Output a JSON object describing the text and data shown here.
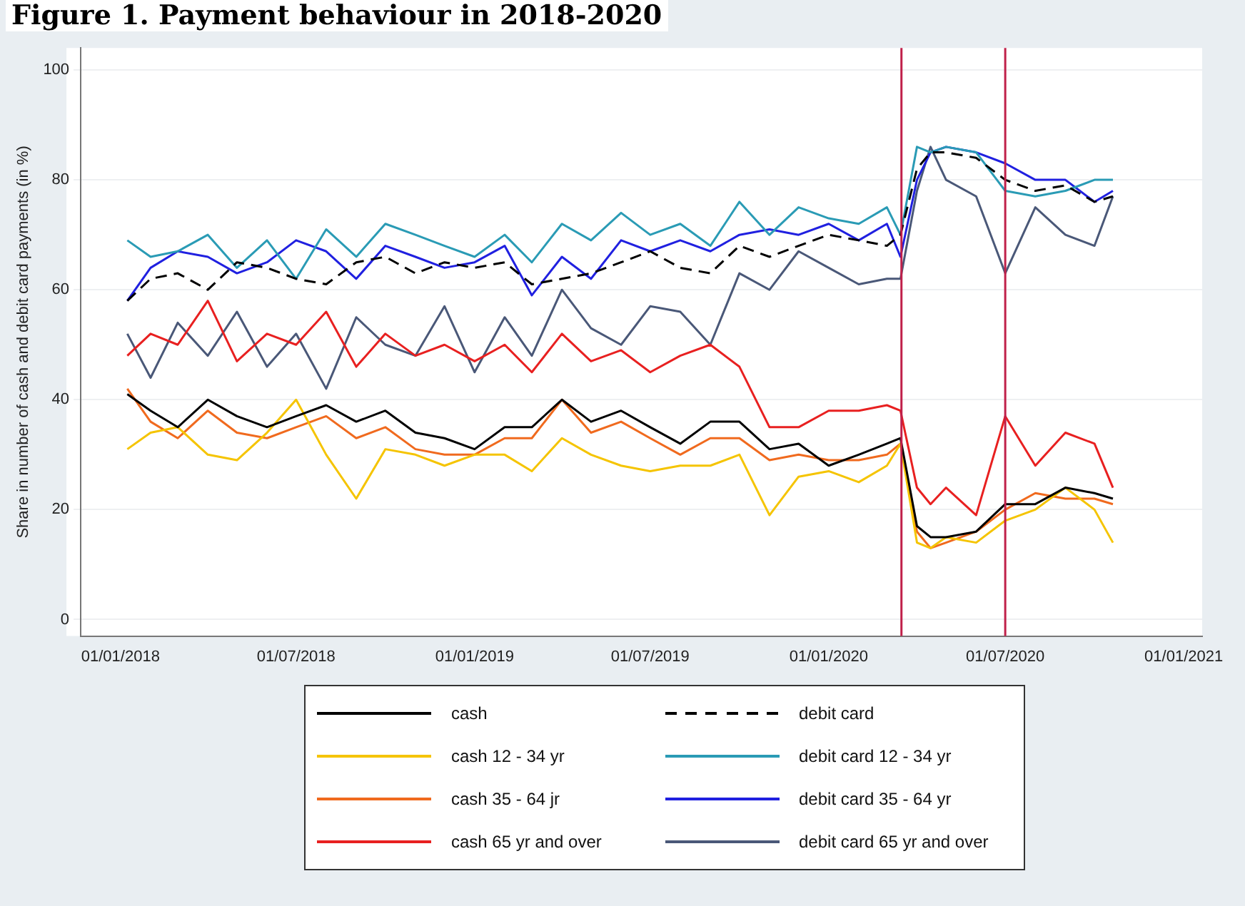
{
  "chart_data": {
    "type": "line",
    "title": "Figure 1. Payment behaviour in 2018-2020",
    "ylabel": "Share in number of cash and debit card payments (in %)",
    "x": [
      "2018-01-08",
      "2018-02-01",
      "2018-03-01",
      "2018-04-01",
      "2018-05-01",
      "2018-06-01",
      "2018-07-01",
      "2018-08-01",
      "2018-09-01",
      "2018-10-01",
      "2018-11-01",
      "2018-12-01",
      "2019-01-01",
      "2019-02-01",
      "2019-03-01",
      "2019-04-01",
      "2019-05-01",
      "2019-06-01",
      "2019-07-01",
      "2019-08-01",
      "2019-09-01",
      "2019-10-01",
      "2019-11-01",
      "2019-12-01",
      "2020-01-01",
      "2020-02-01",
      "2020-03-01",
      "2020-03-15",
      "2020-04-01",
      "2020-04-15",
      "2020-05-01",
      "2020-06-01",
      "2020-07-01",
      "2020-08-01",
      "2020-09-01",
      "2020-10-01",
      "2020-10-20"
    ],
    "series": [
      {
        "name": "cash",
        "color": "#000000",
        "values": [
          41,
          38,
          35,
          40,
          37,
          35,
          37,
          39,
          36,
          38,
          34,
          33,
          31,
          35,
          35,
          40,
          36,
          38,
          35,
          32,
          36,
          36,
          31,
          32,
          28,
          30,
          32,
          33,
          17,
          15,
          15,
          16,
          21,
          21,
          24,
          23,
          22
        ]
      },
      {
        "name": "cash 12 - 34 yr",
        "color": "#f5c400",
        "values": [
          31,
          34,
          35,
          30,
          29,
          34,
          40,
          30,
          22,
          31,
          30,
          28,
          30,
          30,
          27,
          33,
          30,
          28,
          27,
          28,
          28,
          30,
          19,
          26,
          27,
          25,
          28,
          32,
          14,
          13,
          15,
          14,
          18,
          20,
          24,
          20,
          14
        ]
      },
      {
        "name": "cash 35 - 64 jr",
        "color": "#f06a1e",
        "values": [
          42,
          36,
          33,
          38,
          34,
          33,
          35,
          37,
          33,
          35,
          31,
          30,
          30,
          33,
          33,
          40,
          34,
          36,
          33,
          30,
          33,
          33,
          29,
          30,
          29,
          29,
          30,
          32,
          16,
          13,
          14,
          16,
          20,
          23,
          22,
          22,
          21
        ]
      },
      {
        "name": "cash 65 yr and over",
        "color": "#e82020",
        "values": [
          48,
          52,
          50,
          58,
          47,
          52,
          50,
          56,
          46,
          52,
          48,
          50,
          47,
          50,
          45,
          52,
          47,
          49,
          45,
          48,
          50,
          46,
          35,
          35,
          38,
          38,
          39,
          38,
          24,
          21,
          24,
          19,
          37,
          28,
          34,
          32,
          24
        ]
      },
      {
        "name": "debit card",
        "color": "#000000",
        "line_style": "dashed",
        "values": [
          58,
          62,
          63,
          60,
          65,
          64,
          62,
          61,
          65,
          66,
          63,
          65,
          64,
          65,
          61,
          62,
          63,
          65,
          67,
          64,
          63,
          68,
          66,
          68,
          70,
          69,
          68,
          70,
          82,
          85,
          85,
          84,
          80,
          78,
          79,
          76,
          77
        ]
      },
      {
        "name": "debit card 12 - 34 yr",
        "color": "#2a9bb5",
        "values": [
          69,
          66,
          67,
          70,
          64,
          69,
          62,
          71,
          66,
          72,
          70,
          68,
          66,
          70,
          65,
          72,
          69,
          74,
          70,
          72,
          68,
          76,
          70,
          75,
          73,
          72,
          75,
          70,
          86,
          85,
          86,
          85,
          78,
          77,
          78,
          80,
          80
        ]
      },
      {
        "name": "debit card 35 - 64 yr",
        "color": "#2020e0",
        "values": [
          58,
          64,
          67,
          66,
          63,
          65,
          69,
          67,
          62,
          68,
          66,
          64,
          65,
          68,
          59,
          66,
          62,
          69,
          67,
          69,
          67,
          70,
          71,
          70,
          72,
          69,
          72,
          66,
          80,
          85,
          86,
          85,
          83,
          80,
          80,
          76,
          78
        ]
      },
      {
        "name": "debit card 65 yr and over",
        "color": "#4a5878",
        "values": [
          52,
          44,
          54,
          48,
          56,
          46,
          52,
          42,
          55,
          50,
          48,
          57,
          45,
          55,
          48,
          60,
          53,
          50,
          57,
          56,
          50,
          63,
          60,
          67,
          64,
          61,
          62,
          62,
          78,
          86,
          80,
          77,
          63,
          75,
          70,
          68,
          77
        ]
      }
    ],
    "xlim": [
      "2017-11-21",
      "2021-01-20"
    ],
    "xticks": [
      {
        "value": "2018-01-01",
        "label": "01/01/2018"
      },
      {
        "value": "2018-07-01",
        "label": "01/07/2018"
      },
      {
        "value": "2019-01-01",
        "label": "01/01/2019"
      },
      {
        "value": "2019-07-01",
        "label": "01/07/2019"
      },
      {
        "value": "2020-01-01",
        "label": "01/01/2020"
      },
      {
        "value": "2020-07-01",
        "label": "01/07/2020"
      },
      {
        "value": "2021-01-01",
        "label": "01/01/2021"
      }
    ],
    "ylim": [
      -3,
      104
    ],
    "yticks": [
      0,
      20,
      40,
      60,
      80,
      100
    ],
    "ref_lines": [
      {
        "axis": "x",
        "value": "2020-03-16",
        "color": "#c0204a"
      },
      {
        "axis": "x",
        "value": "2020-07-01",
        "color": "#c0204a"
      }
    ],
    "grid": "y",
    "legend": "bottom",
    "marker": "none"
  }
}
